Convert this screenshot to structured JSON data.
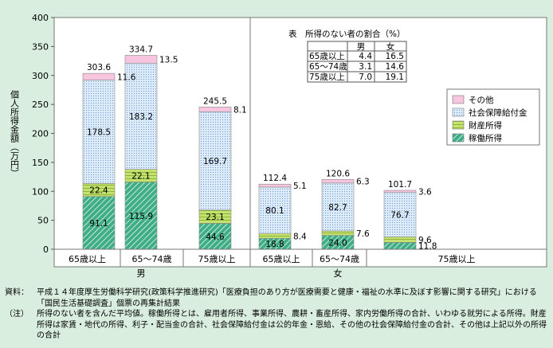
{
  "chart_data": {
    "type": "bar",
    "stacked": true,
    "ylabel": "個人所得金額（万円）",
    "ylim": [
      0,
      400
    ],
    "yticks": [
      0,
      50,
      100,
      150,
      200,
      250,
      300,
      350,
      400
    ],
    "categories": [
      "65歳以上",
      "65～74歳",
      "75歳以上",
      "65歳以上",
      "65～74歳",
      "75歳以上"
    ],
    "groups": [
      {
        "label": "男",
        "start": 0,
        "end": 2
      },
      {
        "label": "女",
        "start": 3,
        "end": 5
      }
    ],
    "series": [
      {
        "name": "稼働所得",
        "values": [
          91.1,
          115.9,
          44.6,
          18.8,
          24.0,
          11.8
        ],
        "color": "#3fae86",
        "pattern": "hatch"
      },
      {
        "name": "財産所得",
        "values": [
          22.4,
          22.1,
          23.1,
          8.4,
          7.6,
          9.6
        ],
        "color": "#c4e36e",
        "pattern": "lines"
      },
      {
        "name": "社会保障給付金",
        "values": [
          178.5,
          183.2,
          169.7,
          80.1,
          82.7,
          76.7
        ],
        "color": "#cfe3f7",
        "pattern": "dots"
      },
      {
        "name": "その他",
        "values": [
          11.6,
          13.5,
          8.1,
          5.1,
          6.3,
          3.6
        ],
        "color": "#f7c6de",
        "pattern": "solid"
      }
    ],
    "totals": [
      "303.6",
      "334.7",
      "245.5",
      "112.4",
      "120.6",
      "101.7"
    ],
    "value_labels": [
      [
        "91.1",
        "115.9",
        "44.6",
        "18.8",
        "24.0",
        "11.8"
      ],
      [
        "22.4",
        "22.1",
        "23.1",
        "8.4",
        "7.6",
        "9.6"
      ],
      [
        "178.5",
        "183.2",
        "169.7",
        "80.1",
        "82.7",
        "76.7"
      ],
      [
        "11.6",
        "13.5",
        "8.1",
        "5.1",
        "6.3",
        "3.6"
      ]
    ],
    "legend_position": "right",
    "grid": false,
    "inset_table": {
      "title": "表　所得のない者の割合（%）",
      "columns": [
        "",
        "男",
        "女"
      ],
      "rows": [
        [
          "65歳以上",
          "4.4",
          "16.5"
        ],
        [
          "65～74歳",
          "3.1",
          "14.6"
        ],
        [
          "75歳以上",
          "7.0",
          "19.1"
        ]
      ]
    }
  },
  "notes": [
    {
      "head": "資料：",
      "text": "平成１４年度厚生労働科学研究(政策科学推進研究)「医療負担のあり方が医療需要と健康・福祉の水準に及ぼす影響に関する研究」における「国民生活基礎調査」個票の再集計結果"
    },
    {
      "head": "（注）",
      "text": "所得のない者を含んだ平均値。稼働所得とは、雇用者所得、事業所得、農耕・畜産所得、家内労働所得の合計、いわゆる就労による所得。財産所得は家賃・地代の所得、利子・配当金の合計、社会保障給付金は公的年金・恩給、その他の社会保障給付金の合計、その他は上記以外の所得の合計"
    }
  ]
}
